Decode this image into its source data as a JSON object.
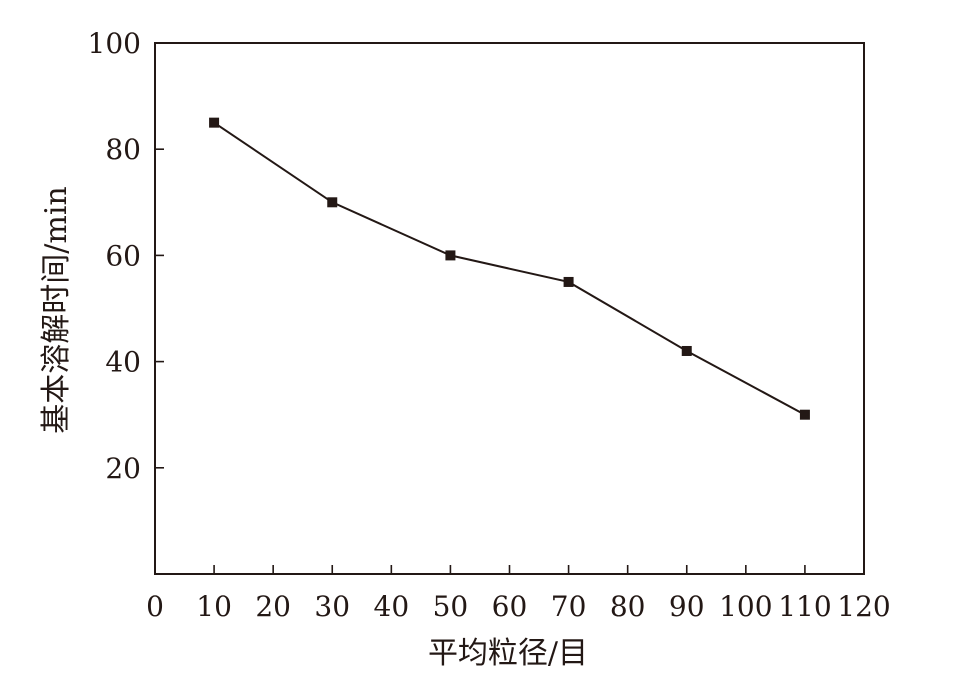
{
  "chart_data": {
    "type": "line",
    "title": "",
    "xlabel": "平均粒径/目",
    "ylabel": "基本溶解时间/min",
    "xlim": [
      0,
      120
    ],
    "ylim": [
      0,
      100
    ],
    "x_ticks": [
      0,
      10,
      20,
      30,
      40,
      50,
      60,
      70,
      80,
      90,
      100,
      110,
      120
    ],
    "y_ticks": [
      20,
      40,
      60,
      80,
      100
    ],
    "grid": false,
    "legend": "none",
    "colors": {
      "line": "#231815",
      "axis": "#231815"
    },
    "series": [
      {
        "x": [
          10,
          30,
          50,
          70,
          90,
          110
        ],
        "y": [
          85,
          70,
          60,
          55,
          42,
          30
        ]
      }
    ]
  }
}
